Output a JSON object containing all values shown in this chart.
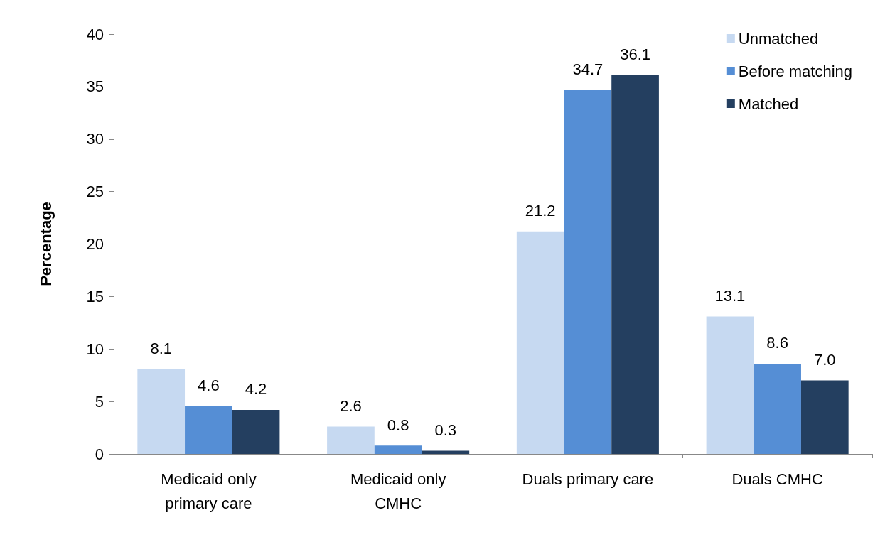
{
  "chart_data": {
    "type": "bar",
    "ylabel": "Percentage",
    "categories": [
      "Medicaid only\nprimary care",
      "Medicaid only\nCMHC",
      "Duals primary care",
      "Duals CMHC"
    ],
    "series": [
      {
        "name": "Unmatched",
        "color": "#c6d9f1",
        "values": [
          8.1,
          2.6,
          21.2,
          13.1
        ],
        "value_labels": [
          "8.1",
          "2.6",
          "21.2",
          "13.1"
        ]
      },
      {
        "name": "Before matching",
        "color": "#558ed5",
        "values": [
          4.6,
          0.8,
          34.7,
          8.6
        ],
        "value_labels": [
          "4.6",
          "0.8",
          "34.7",
          "8.6"
        ]
      },
      {
        "name": "Matched",
        "color": "#243f60",
        "values": [
          4.2,
          0.3,
          36.1,
          7.0
        ],
        "value_labels": [
          "4.2",
          "0.3",
          "36.1",
          "7.0"
        ]
      }
    ],
    "ylim": [
      0,
      40
    ],
    "yticks": [
      0,
      5,
      10,
      15,
      20,
      25,
      30,
      35,
      40
    ],
    "grid": false,
    "legend": "top right"
  }
}
